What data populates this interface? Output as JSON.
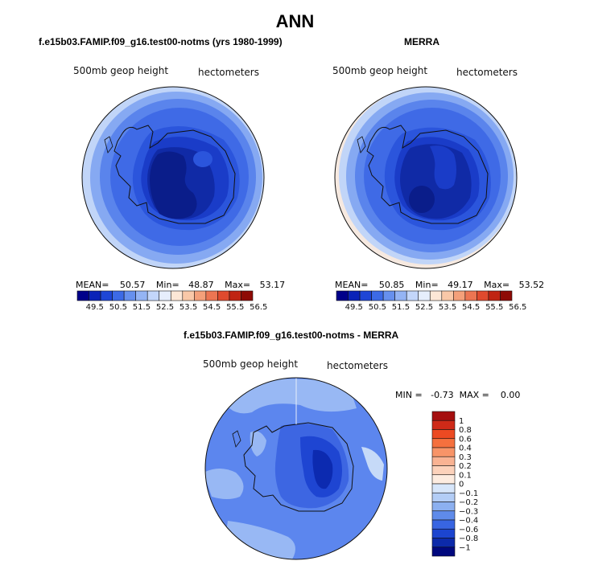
{
  "main_title": "ANN",
  "panels": [
    {
      "title": "f.e15b03.FAMIP.f09_g16.test00-notms (yrs 1980-1999)",
      "variable": "500mb geop height",
      "units": "hectometers",
      "stats": {
        "mean_label": "MEAN=",
        "mean": "50.57",
        "min_label": "Min=",
        "min": "48.87",
        "max_label": "Max=",
        "max": "53.17"
      }
    },
    {
      "title": "MERRA",
      "variable": "500mb geop height",
      "units": "hectometers",
      "stats": {
        "mean_label": "MEAN=",
        "mean": "50.85",
        "min_label": "Min=",
        "min": "49.17",
        "max_label": "Max=",
        "max": "53.52"
      }
    },
    {
      "title": "f.e15b03.FAMIP.f09_g16.test00-notms - MERRA",
      "variable": "500mb geop height",
      "units": "hectometers",
      "stats_text": "MIN =   -0.73  MAX =    0.00"
    }
  ],
  "colorbar_abs": {
    "ticks": [
      "49.5",
      "50.5",
      "51.5",
      "52.5",
      "53.5",
      "54.5",
      "55.5",
      "56.5"
    ],
    "colors": [
      "#00008a",
      "#0a23b8",
      "#1e46d6",
      "#3c6ae6",
      "#6690ee",
      "#94b4f4",
      "#c3d6fa",
      "#e6eefc",
      "#fde7d6",
      "#f9c8a8",
      "#f4a07a",
      "#ec7552",
      "#df4a2e",
      "#c02412",
      "#8e0a05"
    ]
  },
  "colorbar_diff": {
    "labels": [
      "1",
      "0.8",
      "0.6",
      "0.4",
      "0.3",
      "0.2",
      "0.1",
      "0",
      "−0.1",
      "−0.2",
      "−0.3",
      "−0.4",
      "−0.6",
      "−0.8",
      "−1"
    ],
    "colors": [
      "#a50f0f",
      "#cf2a18",
      "#ec4a22",
      "#f5703e",
      "#f89468",
      "#f9b393",
      "#fcd2bb",
      "#fdece0",
      "#d7e6fa",
      "#b3cdf6",
      "#8cb0f0",
      "#5f8bea",
      "#3865e2",
      "#1c45d0",
      "#0c2aaa",
      "#00087e"
    ]
  },
  "map_colors": {
    "c0": "#0a1d8a",
    "c1": "#102aa6",
    "c2": "#1a3cc8",
    "c3": "#2b55dc",
    "c4": "#3f6ae6",
    "c5": "#5a84ec",
    "c6": "#86a9f2",
    "c7": "#c1d5f8",
    "c8": "#f6e9e0",
    "c9": "#f4dccd",
    "d_bg": "#5c86ee",
    "d_light": "#98b8f4",
    "d_pale": "#c6daf8",
    "d_mid": "#3d66e2",
    "d_dark": "#1e45d2",
    "d_darker": "#0c2ab0"
  }
}
